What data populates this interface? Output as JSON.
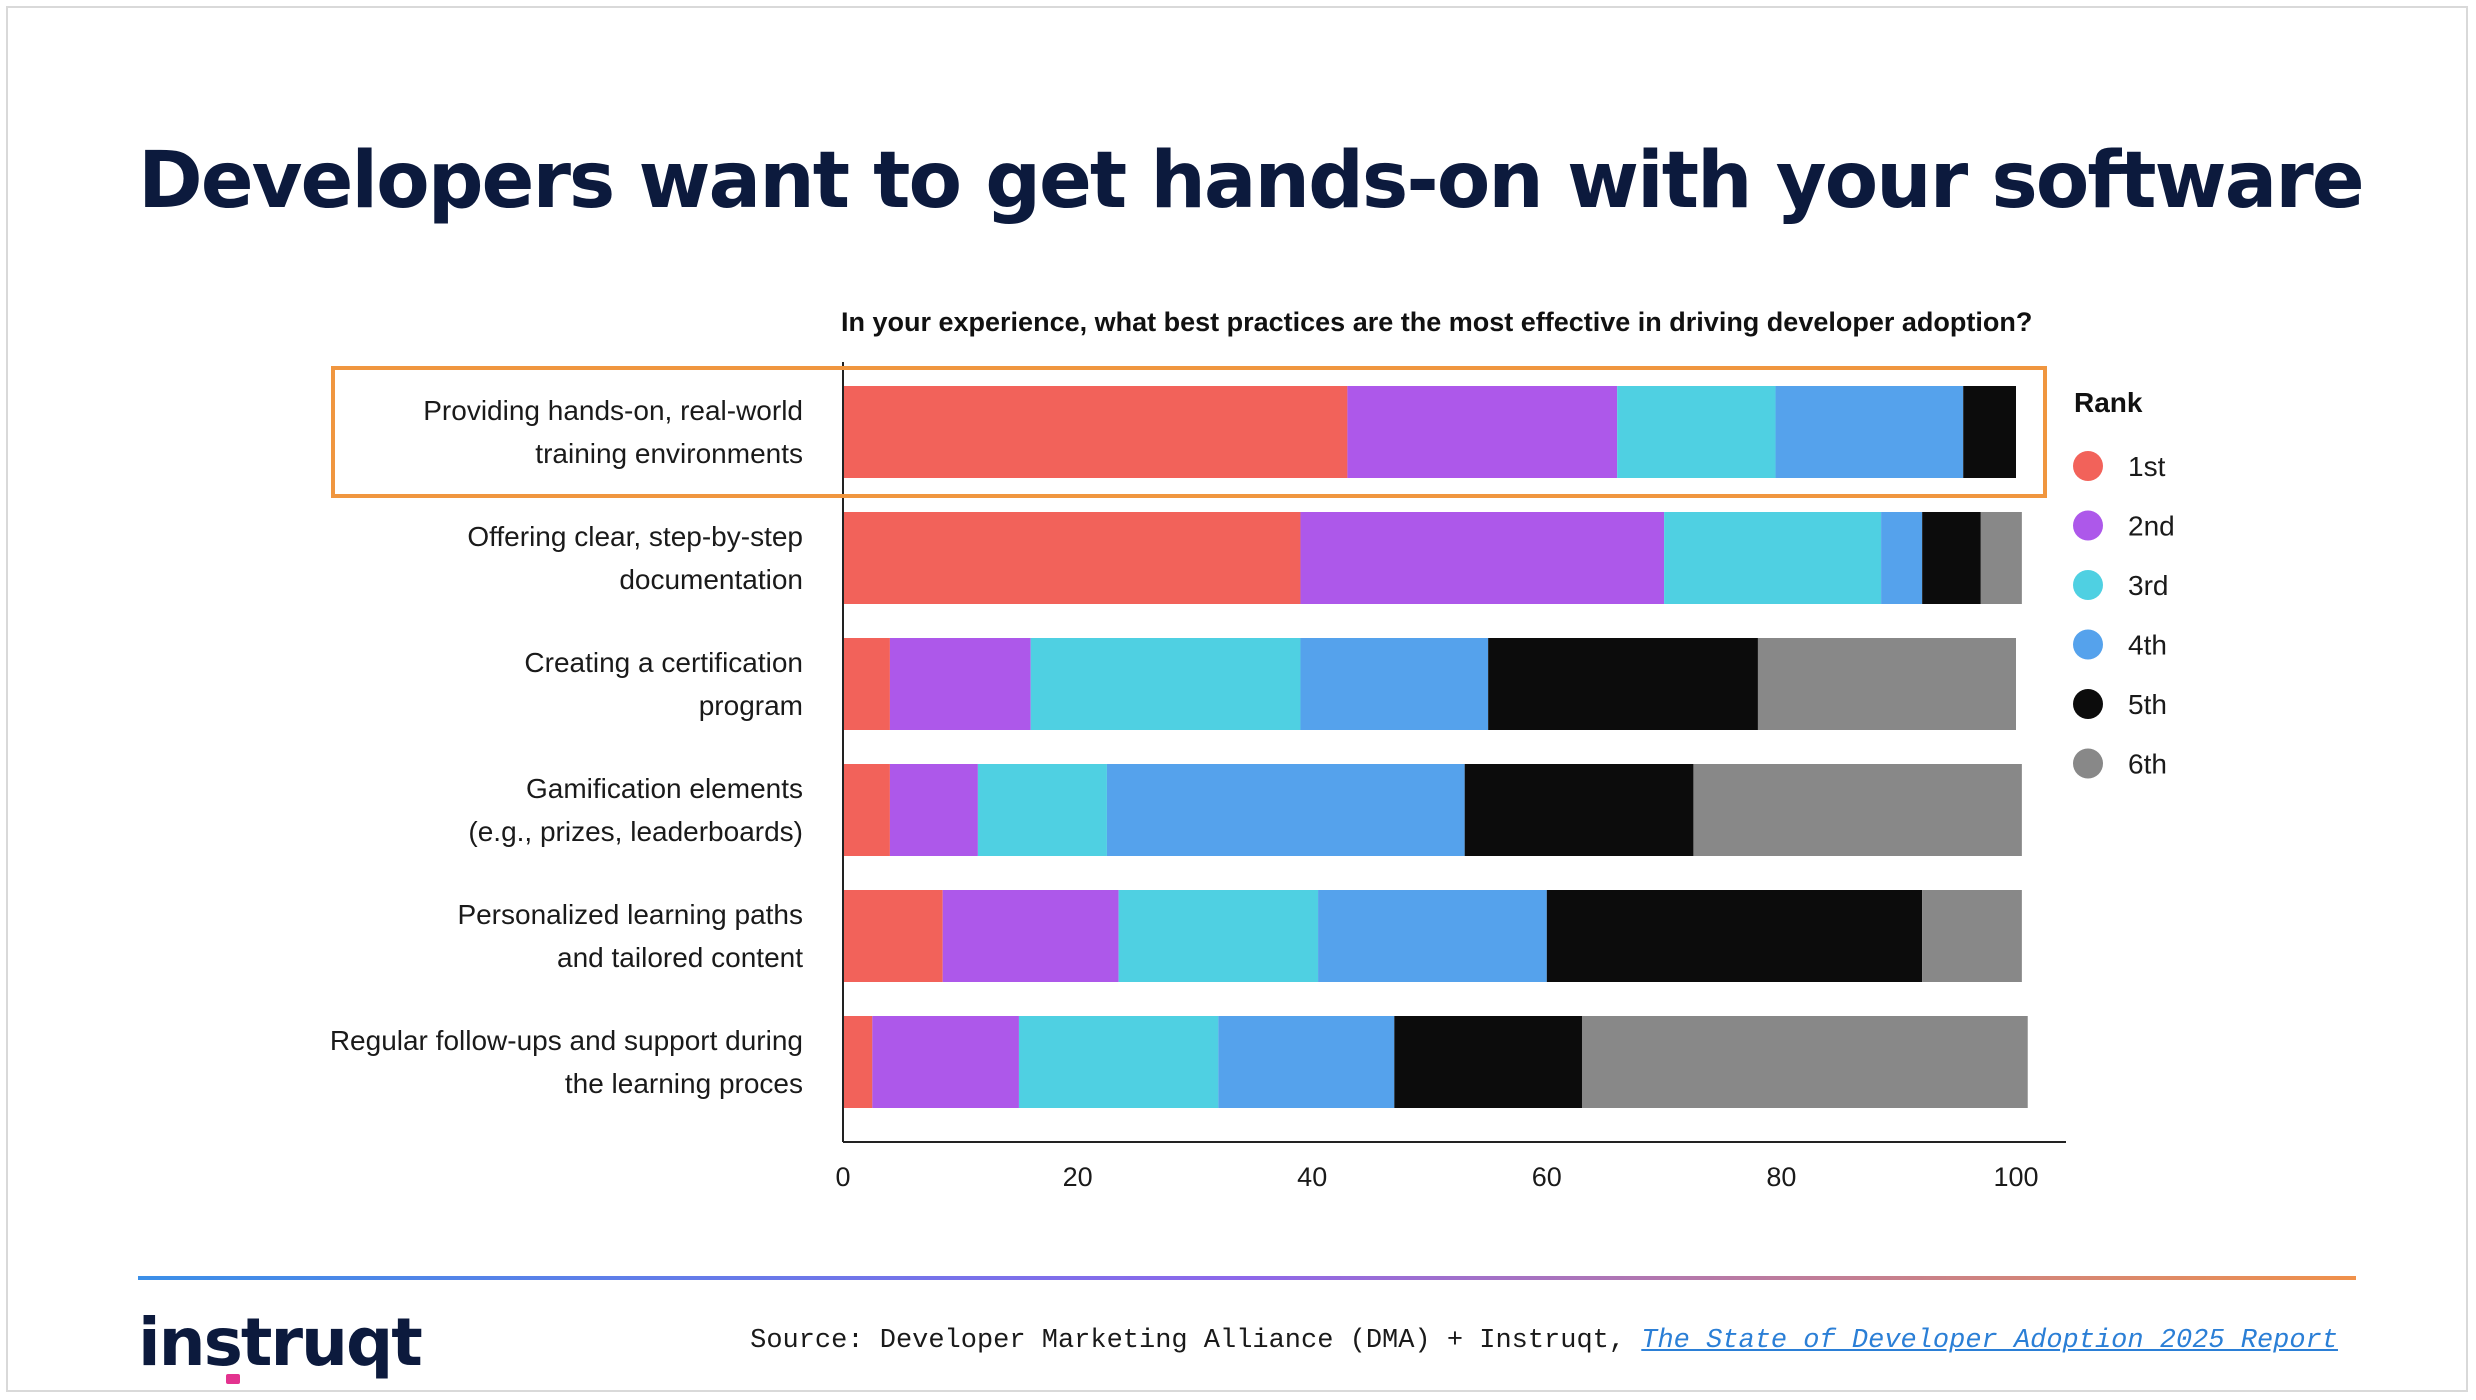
{
  "headline": "Developers want to get hands-on with your software",
  "footer": {
    "logo": "instruqt",
    "source_prefix": "Source: Developer Marketing Alliance (DMA) + Instruqt, ",
    "source_link": "The State of Developer Adoption 2025 Report"
  },
  "colors": {
    "1st": "#f2625a",
    "2nd": "#ad58ea",
    "3rd": "#4fd0e2",
    "4th": "#55a2ec",
    "5th": "#0c0c0c",
    "6th": "#888888",
    "highlight": "#f0963f"
  },
  "chart_data": {
    "type": "bar",
    "orientation": "horizontal",
    "stacked": true,
    "title": "In your experience, what best practices are the most effective in driving developer adoption?",
    "legend_title": "Rank",
    "legend_position": "right",
    "categories": [
      [
        "Providing hands-on, real-world",
        "training environments"
      ],
      [
        "Offering clear, step-by-step",
        "documentation"
      ],
      [
        "Creating a certification",
        "program"
      ],
      [
        "Gamification elements",
        "(e.g., prizes, leaderboards)"
      ],
      [
        "Personalized learning paths",
        "and tailored content"
      ],
      [
        "Regular follow-ups and support during",
        "the learning proces"
      ]
    ],
    "highlighted_category_index": 0,
    "series": [
      {
        "name": "1st",
        "values": [
          43,
          39,
          4,
          4,
          8.5,
          2.5
        ]
      },
      {
        "name": "2nd",
        "values": [
          23,
          31,
          12,
          7.5,
          15,
          12.5
        ]
      },
      {
        "name": "3rd",
        "values": [
          13.5,
          18.5,
          23,
          11,
          17,
          17
        ]
      },
      {
        "name": "4th",
        "values": [
          16,
          3.5,
          16,
          30.5,
          19.5,
          15
        ]
      },
      {
        "name": "5th",
        "values": [
          4.5,
          5,
          23,
          19.5,
          32,
          16
        ]
      },
      {
        "name": "6th",
        "values": [
          0,
          3.5,
          22,
          28,
          8.5,
          38
        ]
      }
    ],
    "xlim": [
      0,
      100
    ],
    "xticks": [
      0,
      20,
      40,
      60,
      80,
      100
    ],
    "grid": false
  }
}
